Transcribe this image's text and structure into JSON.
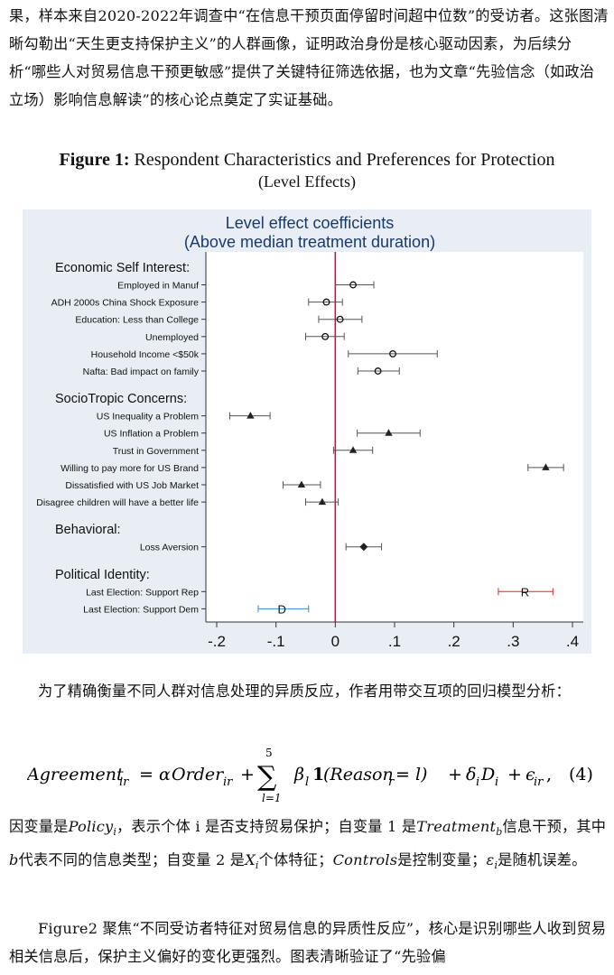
{
  "paragraphs": {
    "p1": "果，样本来自2020-2022年调查中“在信息干预页面停留时间超中位数”的受访者。这张图清晰勾勒出“天生更支持保护主义”的人群画像，证明政治身份是核心驱动因素，为后续分析“哪些人对贸易信息干预更敏感”提供了关键特征筛选依据，也为文章“先验信念（如政治立场）影响信息解读”的核心论点奠定了实证基础。",
    "p2": "为了精确衡量不同人群对信息处理的异质反应，作者用带交互项的回归模型分析：",
    "p3_parts": [
      "因变量是",
      "Policy",
      "i",
      "，表示个体 i 是否支持贸易保护；自变量 1 是",
      "Treatment",
      "b",
      "信息干预，其中",
      "b",
      "代表不同的信息类型；自变量 2 是",
      "X",
      "i",
      "个体特征；",
      "Controls",
      "是控制变量；",
      "ε",
      "i",
      "是随机误差。"
    ],
    "p4": "Figure2 聚焦“不同受访者特征对贸易信息的异质性反应”，核心是识别哪些人收到贸易相关信息后，保护主义偏好的变化更强烈。图表清晰验证了“先验偏"
  },
  "figure": {
    "label": "Figure 1:",
    "title": "Respondent Characteristics and Preferences for Protection",
    "subtitle": "(Level Effects)"
  },
  "equation": {
    "lhs": "Agreement",
    "lhs_sub": "ir",
    "eq": "=",
    "alpha": "α",
    "order": "Order",
    "order_sub": "ir",
    "plus1": "+",
    "sum_symbol": "∑",
    "sum_top": "5",
    "sum_bottom": "l=1",
    "beta": "β",
    "beta_sub": "l",
    "indicator": "1",
    "reason": "(Reason",
    "reason_sub": "r",
    "reason_tail": " = l)",
    "plus2": "+",
    "delta": "δ",
    "delta_sub": "i",
    "d": "D",
    "d_sub": "i",
    "plus3": "+",
    "eps": "ϵ",
    "eps_sub": "ir",
    "comma": ",",
    "number": "(4)"
  },
  "chart_data": {
    "type": "scatter",
    "title": "Level effect coefficients",
    "subtitle": "(Above median treatment duration)",
    "xlim": [
      -0.2,
      0.4
    ],
    "xticks": [
      -0.2,
      -0.1,
      0,
      0.1,
      0.2,
      0.3,
      0.4
    ],
    "xtick_labels": [
      "-.2",
      "-.1",
      "0",
      ".1",
      ".2",
      ".3",
      ".4"
    ],
    "reference_line": 0,
    "reference_color": "#c0114e",
    "groups": [
      {
        "header": "Economic Self Interest:",
        "marker": "circle",
        "items": [
          {
            "label": "Employed in Manuf",
            "estimate": 0.03,
            "ci": [
              0.0,
              0.065
            ]
          },
          {
            "label": "ADH 2000s China Shock Exposure",
            "estimate": -0.015,
            "ci": [
              -0.045,
              0.012
            ]
          },
          {
            "label": "Education: Less than College",
            "estimate": 0.008,
            "ci": [
              -0.028,
              0.045
            ]
          },
          {
            "label": "Unemployed",
            "estimate": -0.017,
            "ci": [
              -0.05,
              0.015
            ]
          },
          {
            "label": "Household Income <$50k",
            "estimate": 0.097,
            "ci": [
              0.022,
              0.172
            ]
          },
          {
            "label": "Nafta: Bad impact on family",
            "estimate": 0.072,
            "ci": [
              0.038,
              0.108
            ]
          }
        ]
      },
      {
        "header": "SocioTropic Concerns:",
        "marker": "triangle",
        "items": [
          {
            "label": "US Inequality a Problem",
            "estimate": -0.143,
            "ci": [
              -0.178,
              -0.11
            ]
          },
          {
            "label": "US Inflation a Problem",
            "estimate": 0.09,
            "ci": [
              0.037,
              0.143
            ]
          },
          {
            "label": "Trust in Government",
            "estimate": 0.03,
            "ci": [
              -0.003,
              0.063
            ]
          },
          {
            "label": "Willing to pay more for US Brand",
            "estimate": 0.355,
            "ci": [
              0.325,
              0.385
            ]
          },
          {
            "label": "Dissatisfied with US Job Market",
            "estimate": -0.057,
            "ci": [
              -0.088,
              -0.025
            ]
          },
          {
            "label": "Disagree children will have a better life",
            "estimate": -0.022,
            "ci": [
              -0.05,
              0.005
            ]
          }
        ]
      },
      {
        "header": "Behavioral:",
        "marker": "diamond",
        "items": [
          {
            "label": "Loss Aversion",
            "estimate": 0.048,
            "ci": [
              0.018,
              0.078
            ]
          }
        ]
      },
      {
        "header": "Political Identity:",
        "marker": "letter",
        "items": [
          {
            "label": "Last Election: Support Rep",
            "estimate": 0.32,
            "ci": [
              0.275,
              0.367
            ],
            "letter": "R",
            "color": "#e0262b"
          },
          {
            "label": "Last Election: Support Dem",
            "estimate": -0.09,
            "ci": [
              -0.13,
              -0.045
            ],
            "letter": "D",
            "color": "#2a8fd0"
          }
        ]
      }
    ]
  }
}
